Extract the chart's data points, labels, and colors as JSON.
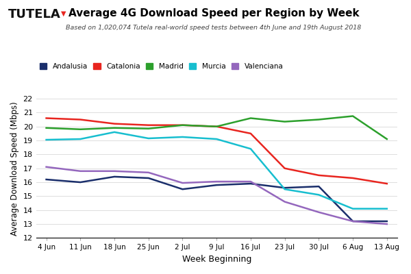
{
  "title": "Average 4G Download Speed per Region by Week",
  "subtitle": "Based on 1,020,074 Tutela real-world speed tests between 4th June and 19th August 2018",
  "xlabel": "Week Beginning",
  "ylabel": "Average Download Speed (Mbps)",
  "x_labels": [
    "4 Jun",
    "11 Jun",
    "18 Jun",
    "25 Jun",
    "2 Jul",
    "9 Jul",
    "16 Jul",
    "23 Jul",
    "30 Jul",
    "6 Aug",
    "13 Aug"
  ],
  "ylim": [
    12,
    22
  ],
  "yticks": [
    12,
    13,
    14,
    15,
    16,
    17,
    18,
    19,
    20,
    21,
    22
  ],
  "series": {
    "Andalusia": {
      "color": "#1a2e6b",
      "values": [
        16.2,
        16.0,
        16.4,
        16.3,
        15.5,
        15.8,
        15.9,
        15.6,
        15.7,
        13.2,
        13.2
      ]
    },
    "Catalonia": {
      "color": "#e8251f",
      "values": [
        20.6,
        20.5,
        20.2,
        20.1,
        20.1,
        20.0,
        19.5,
        17.0,
        16.5,
        16.3,
        15.9
      ]
    },
    "Madrid": {
      "color": "#2ca02c",
      "values": [
        19.9,
        19.8,
        19.9,
        19.85,
        20.1,
        20.0,
        20.6,
        20.35,
        20.5,
        20.75,
        19.1
      ]
    },
    "Murcia": {
      "color": "#17becf",
      "values": [
        19.05,
        19.1,
        19.6,
        19.15,
        19.25,
        19.1,
        18.4,
        15.5,
        15.1,
        14.1,
        14.1
      ]
    },
    "Valenciana": {
      "color": "#9467bd",
      "values": [
        17.1,
        16.8,
        16.8,
        16.7,
        15.95,
        16.05,
        16.05,
        14.6,
        13.85,
        13.2,
        13.0
      ]
    }
  },
  "tutela_text": "TUTELA",
  "tutela_icon": "▼",
  "background_color": "#ffffff",
  "line_width": 1.8
}
